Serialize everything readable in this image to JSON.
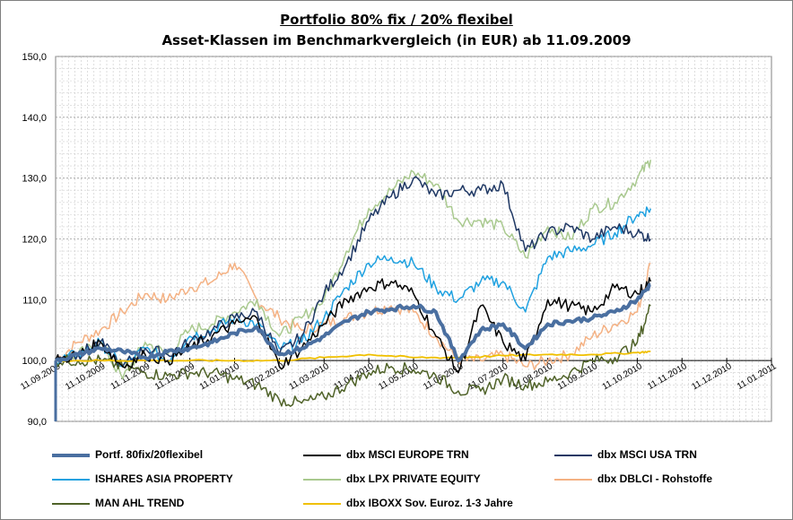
{
  "title": "Portfolio 80% fix / 20% flexibel",
  "subtitle": "Asset-Klassen im Benchmarkvergleich (in EUR) ab 11.09.2009",
  "chart_data": {
    "type": "line",
    "title": "Portfolio 80% fix / 20% flexibel",
    "subtitle": "Asset-Klassen im Benchmarkvergleich (in EUR) ab 11.09.2009",
    "xlabel": "",
    "ylabel": "",
    "ylim": [
      90,
      150
    ],
    "yticks": [
      "90,0",
      "100,0",
      "110,0",
      "120,0",
      "130,0",
      "140,0",
      "150,0"
    ],
    "ytick_values": [
      90,
      100,
      110,
      120,
      130,
      140,
      150
    ],
    "xticks": [
      "11.09.2009",
      "11.10.2009",
      "11.11.2009",
      "11.12.2009",
      "11.01.2010",
      "11.02.2010",
      "11.03.2010",
      "11.04.2010",
      "11.05.2010",
      "11.06.2010",
      "11.07.2010",
      "11.08.2010",
      "11.09.2010",
      "11.10.2010",
      "11.11.2010",
      "11.12.2010",
      "11.01.2011"
    ],
    "x_range_months": [
      0,
      16
    ],
    "grid": true,
    "legend_position": "bottom",
    "series": [
      {
        "name": "Portf. 80fix/20flexibel",
        "color": "#4a6fa0",
        "width": 4,
        "x": [
          0,
          0.5,
          1,
          1.5,
          2,
          2.5,
          3,
          3.5,
          4,
          4.5,
          5,
          5.5,
          6,
          6.5,
          7,
          7.5,
          8,
          8.5,
          9,
          9.5,
          10,
          10.5,
          11,
          11.5,
          12,
          12.5,
          13,
          13.3
        ],
        "y": [
          100,
          101,
          102,
          101.5,
          100.5,
          101.5,
          102,
          103,
          104.5,
          105.5,
          101,
          102,
          104,
          106.5,
          108,
          108.5,
          109,
          108,
          100,
          105,
          106,
          102,
          106,
          106.5,
          107,
          108,
          110,
          112.5
        ]
      },
      {
        "name": "dbx MSCI EUROPE TRN",
        "color": "#000000",
        "width": 1.5,
        "x": [
          0,
          0.5,
          1,
          1.5,
          2,
          2.5,
          3,
          3.5,
          4,
          4.5,
          5,
          5.5,
          6,
          6.5,
          7,
          7.5,
          8,
          8.5,
          9,
          9.5,
          10,
          10.5,
          11,
          11.5,
          12,
          12.5,
          13,
          13.3
        ],
        "y": [
          100,
          101,
          103,
          99,
          101,
          100,
          102,
          104,
          106,
          107,
          99,
          102,
          106,
          110,
          112,
          113,
          111,
          104,
          98,
          109,
          103,
          100,
          110,
          109,
          108,
          112,
          111,
          113
        ]
      },
      {
        "name": "dbx MSCI USA TRN",
        "color": "#1f3864",
        "width": 1.5,
        "x": [
          0,
          0.5,
          1,
          1.5,
          2,
          2.5,
          3,
          3.5,
          4,
          4.5,
          5,
          5.5,
          6,
          6.5,
          7,
          7.5,
          8,
          8.5,
          9,
          9.5,
          10,
          10.5,
          11,
          11.5,
          12,
          12.5,
          13,
          13.3
        ],
        "y": [
          100,
          101,
          103,
          99,
          102,
          101,
          103,
          105,
          107,
          108,
          101,
          104,
          111,
          116,
          123,
          127,
          130,
          127,
          128,
          128,
          129,
          118,
          121,
          122,
          120,
          122,
          121,
          120
        ]
      },
      {
        "name": "ISHARES ASIA PROPERTY",
        "color": "#1fa1e0",
        "width": 1.5,
        "x": [
          0,
          0.5,
          1,
          1.5,
          2,
          2.5,
          3,
          3.5,
          4,
          4.5,
          5,
          5.5,
          6,
          6.5,
          7,
          7.5,
          8,
          8.5,
          9,
          9.5,
          10,
          10.5,
          11,
          11.5,
          12,
          12.5,
          13,
          13.3
        ],
        "y": [
          100,
          101,
          103,
          99,
          102,
          100,
          104,
          105,
          107,
          106,
          102,
          103,
          107,
          112,
          116,
          117,
          116,
          112,
          110,
          113,
          113,
          108,
          117,
          118,
          119,
          121,
          124,
          125
        ]
      },
      {
        "name": "dbx LPX PRIVATE EQUITY",
        "color": "#a9c98f",
        "width": 1.5,
        "x": [
          0,
          0.5,
          1,
          1.5,
          2,
          2.5,
          3,
          3.5,
          4,
          4.5,
          5,
          5.5,
          6,
          6.5,
          7,
          7.5,
          8,
          8.5,
          9,
          9.5,
          10,
          10.5,
          11,
          11.5,
          12,
          12.5,
          13,
          13.3
        ],
        "y": [
          100,
          101,
          103,
          97,
          103,
          101,
          105,
          106,
          108,
          110,
          104,
          107,
          110,
          118,
          125,
          128,
          131,
          129,
          123,
          123,
          122,
          117,
          122,
          120,
          125,
          126,
          130,
          133
        ]
      },
      {
        "name": "dbx DBLCI - Rohstoffe",
        "color": "#f4b183",
        "width": 1.5,
        "x": [
          0,
          0.5,
          1,
          1.5,
          2,
          2.5,
          3,
          3.5,
          4,
          4.5,
          5,
          5.5,
          6,
          6.5,
          7,
          7.5,
          8,
          8.5,
          9,
          9.5,
          10,
          10.5,
          11,
          11.5,
          12,
          12.5,
          13,
          13.3
        ],
        "y": [
          100,
          103,
          105,
          108,
          111,
          110,
          112,
          113,
          116,
          110,
          107,
          105,
          106,
          107,
          108,
          109,
          108,
          104,
          100,
          100,
          101,
          99,
          100,
          101,
          104,
          106,
          108,
          116
        ]
      },
      {
        "name": "MAN AHL TREND",
        "color": "#4f6228",
        "width": 1.5,
        "x": [
          0,
          0.5,
          1,
          1.5,
          2,
          2.5,
          3,
          3.5,
          4,
          4.5,
          5,
          5.5,
          6,
          6.5,
          7,
          7.5,
          8,
          8.5,
          9,
          9.5,
          10,
          10.5,
          11,
          11.5,
          12,
          12.5,
          13,
          13.3
        ],
        "y": [
          100,
          100,
          100,
          99,
          98,
          97.5,
          98,
          98,
          97,
          96,
          93.5,
          93,
          94,
          96,
          98,
          99,
          98.5,
          97.5,
          95,
          95,
          97,
          96,
          96.5,
          98,
          100,
          100.5,
          103,
          109
        ]
      },
      {
        "name": "dbx IBOXX Sov. Euroz. 1-3 Jahre",
        "color": "#f0c000",
        "width": 1.8,
        "x": [
          0,
          1,
          2,
          3,
          4,
          5,
          6,
          7,
          8,
          9,
          10,
          11,
          12,
          13,
          13.3
        ],
        "y": [
          100,
          100,
          100,
          100,
          100,
          100,
          100.5,
          101,
          100.5,
          100.5,
          100.8,
          101,
          101,
          101.3,
          101.5
        ]
      }
    ]
  },
  "legend": [
    "Portf. 80fix/20flexibel",
    "dbx MSCI EUROPE TRN",
    "dbx MSCI USA TRN",
    "ISHARES ASIA PROPERTY",
    "dbx LPX PRIVATE EQUITY",
    "dbx DBLCI - Rohstoffe",
    "MAN AHL TREND",
    "dbx IBOXX Sov. Euroz. 1-3 Jahre"
  ],
  "colors": {
    "portf": "#4a6fa0",
    "europe": "#000000",
    "usa": "#1f3864",
    "asia": "#1fa1e0",
    "lpx": "#a9c98f",
    "dblci": "#f4b183",
    "ahl": "#4f6228",
    "iboxx": "#f0c000"
  }
}
